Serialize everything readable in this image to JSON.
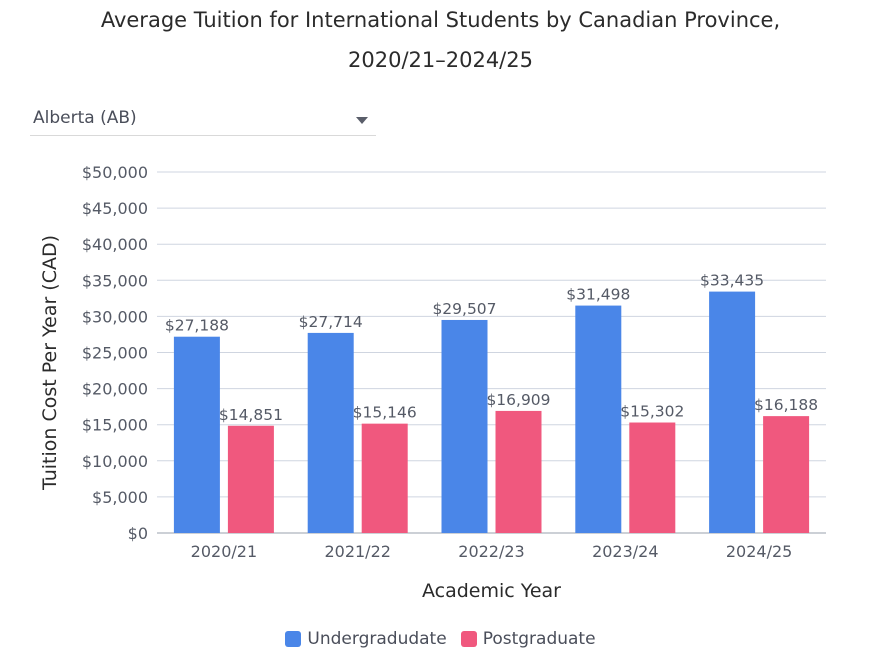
{
  "title_line1": "Average Tuition for International Students by Canadian Province,",
  "title_line2": "2020/21–2024/25",
  "dropdown": {
    "selected": "Alberta (AB)"
  },
  "colors": {
    "undergraduate": "#4a86e8",
    "postgraduate": "#f0587e",
    "grid": "#cfd5e0",
    "tick_text": "#555a66",
    "label_text": "#555a66"
  },
  "chart_data": {
    "type": "bar",
    "categories": [
      "2020/21",
      "2021/22",
      "2022/23",
      "2023/24",
      "2024/25"
    ],
    "series": [
      {
        "name": "Undergradudate",
        "values": [
          27188,
          27714,
          29507,
          31498,
          33435
        ],
        "labels": [
          "$27,188",
          "$27,714",
          "$29,507",
          "$31,498",
          "$33,435"
        ]
      },
      {
        "name": "Postgraduate",
        "values": [
          14851,
          15146,
          16909,
          15302,
          16188
        ],
        "labels": [
          "$14,851",
          "$15,146",
          "$16,909",
          "$15,302",
          "$16,188"
        ]
      }
    ],
    "xlabel": "Academic Year",
    "ylabel": "Tuition Cost Per Year (CAD)",
    "ylim": [
      0,
      50000
    ],
    "yticks": [
      "$0",
      "$5,000",
      "$10,000",
      "$15,000",
      "$20,000",
      "$25,000",
      "$30,000",
      "$35,000",
      "$40,000",
      "$45,000",
      "$50,000"
    ],
    "grid": true,
    "legend_position": "bottom"
  }
}
